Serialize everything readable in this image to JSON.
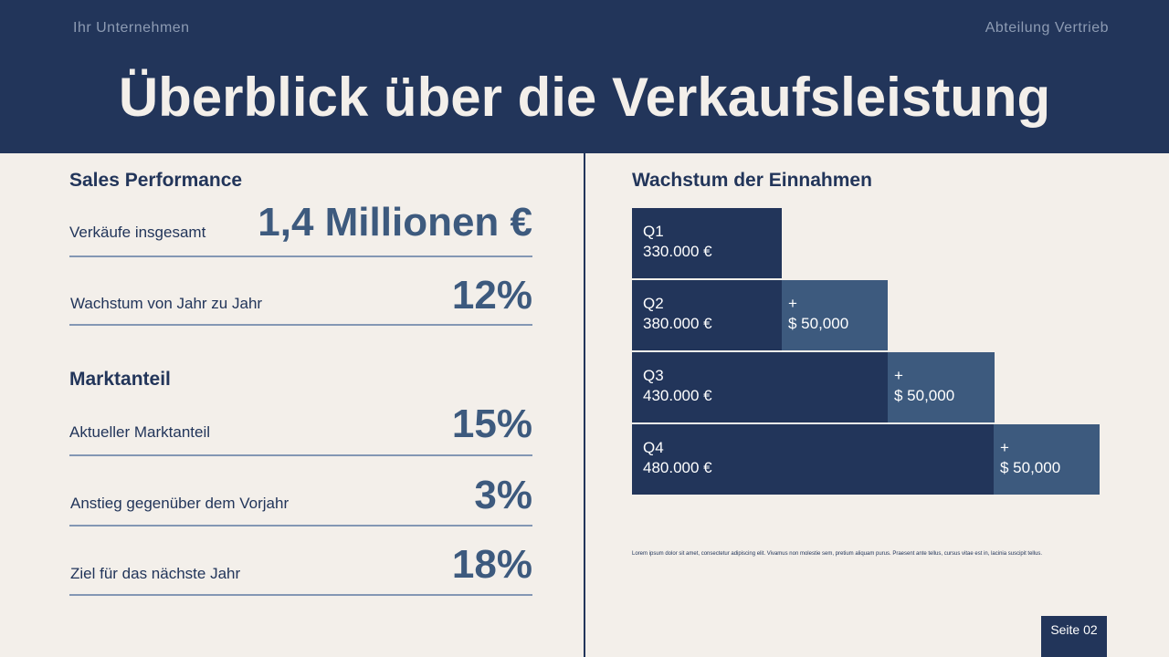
{
  "header": {
    "company": "Ihr Unternehmen",
    "department": "Abteilung Vertrieb",
    "title": "Überblick über die Verkaufsleistung"
  },
  "left": {
    "sections": [
      {
        "heading": "Sales Performance",
        "rows": [
          {
            "label": "Verkäufe insgesamt",
            "value": "1,4 Millionen €"
          },
          {
            "label": "Wachstum von Jahr zu Jahr",
            "value": "12%"
          }
        ]
      },
      {
        "heading": "Marktanteil",
        "rows": [
          {
            "label": "Aktueller Marktanteil",
            "value": "15%"
          },
          {
            "label": "Anstieg gegenüber dem Vorjahr",
            "value": "3%"
          },
          {
            "label": "Ziel für das nächste Jahr",
            "value": "18%"
          }
        ]
      }
    ]
  },
  "right": {
    "heading": "Wachstum der Einnahmen",
    "rows": [
      {
        "quarter": "Q1",
        "amount": "330.000 €"
      },
      {
        "quarter": "Q2",
        "amount": "380.000 €",
        "sign": "+",
        "increase": "$ 50,000"
      },
      {
        "quarter": "Q3",
        "amount": "430.000 €",
        "sign": "+",
        "increase": "$ 50,000"
      },
      {
        "quarter": "Q4",
        "amount": "480.000 €",
        "sign": "+",
        "increase": "$ 50,000"
      }
    ],
    "note": "Lorem ipsum dolor sit amet, consectetur adipiscing elit. Vivamus non molestie sem, pretium aliquam purus. Praesent ante tellus, cursus vitae est in, lacinia suscipit tellus."
  },
  "footer": {
    "page": "Seite 02"
  }
}
